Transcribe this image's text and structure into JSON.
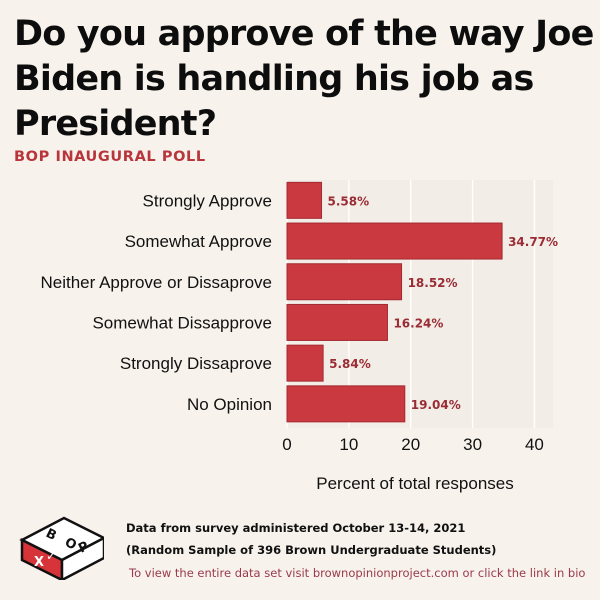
{
  "title": "Do you approve of the way Joe Biden is handling his job as President?",
  "subtitle": "BOP INAUGURAL POLL",
  "chart_data": {
    "type": "bar",
    "orientation": "horizontal",
    "categories": [
      "Strongly Approve",
      "Somewhat Approve",
      "Neither Approve or Dissaprove",
      "Somewhat Dissapprove",
      "Strongly Dissaprove",
      "No Opinion"
    ],
    "values": [
      5.58,
      34.77,
      18.52,
      16.24,
      5.84,
      19.04
    ],
    "value_labels": [
      "5.58%",
      "34.77%",
      "18.52%",
      "16.24%",
      "5.84%",
      "19.04%"
    ],
    "xlabel": "Percent of total responses",
    "ylabel": "",
    "xlim": [
      0,
      43
    ],
    "xticks": [
      0,
      10,
      20,
      30,
      40
    ],
    "grid": true,
    "bar_color": "#c9393f",
    "label_color": "#9b2c35"
  },
  "footer": {
    "logo_letters": [
      "B",
      "O",
      "P",
      "X",
      "✓"
    ],
    "line1": "Data from survey administered October 13-14, 2021",
    "line2": "(Random Sample of 396 Brown Undergraduate Students)",
    "link_text": "To view the entire data set visit brownopinionproject.com or click the link in bio"
  },
  "colors": {
    "background": "#f7f2ec",
    "accent": "#b8353c",
    "link": "#9a3a4a"
  }
}
